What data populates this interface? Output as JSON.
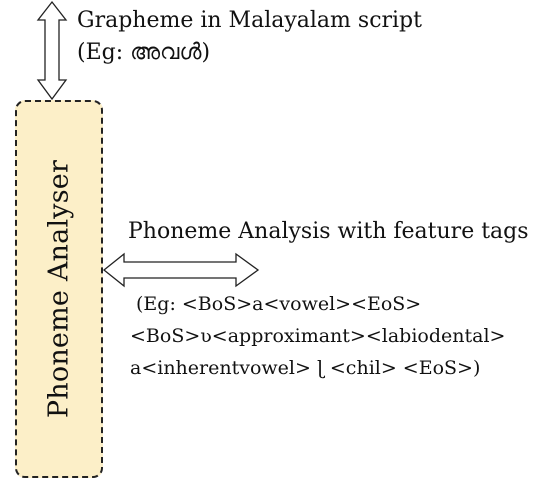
{
  "grapheme": {
    "title": "Grapheme in Malayalam script",
    "example": "(Eg: അവൾ)"
  },
  "analyser": {
    "label": "Phoneme Analyser",
    "fill_color": "#fcefc8"
  },
  "phoneme_analysis": {
    "title": "Phoneme Analysis with feature tags",
    "example_lines": [
      "(Eg: <BoS>a<vowel><EoS>",
      "<BoS>ʋ<approximant><labiodental>",
      "a<inherentvowel> ɭ <chil> <EoS>)"
    ]
  }
}
